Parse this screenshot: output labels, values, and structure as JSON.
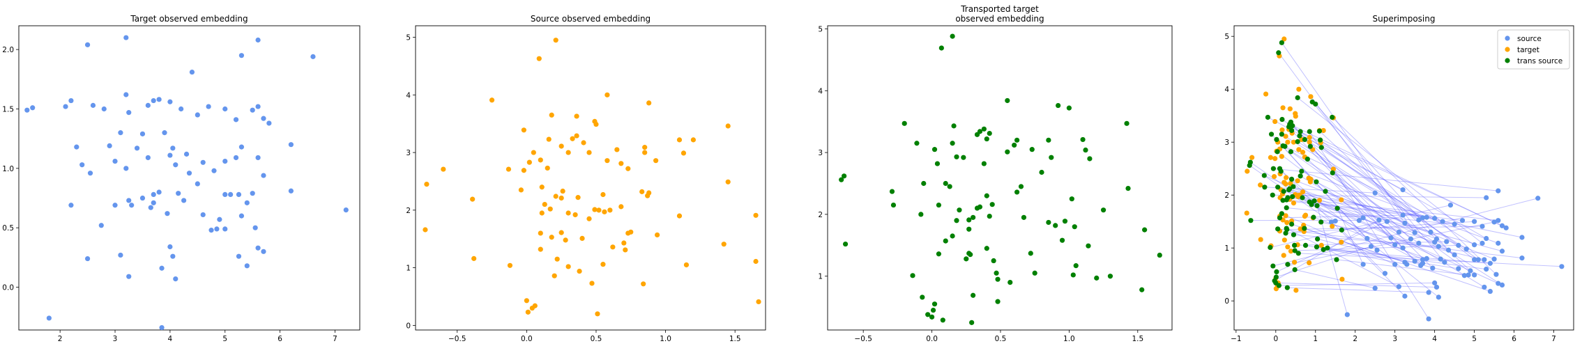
{
  "chart_data": [
    {
      "type": "scatter",
      "title": "Target observed embedding",
      "xlabel": "",
      "ylabel": "",
      "xlim": [
        1.25,
        7.45
      ],
      "ylim": [
        -0.36,
        2.2
      ],
      "xticks": [
        2,
        3,
        4,
        5,
        6,
        7
      ],
      "yticks": [
        0.0,
        0.5,
        1.0,
        1.5,
        2.0
      ],
      "color": "#6495ed",
      "points": [
        [
          1.4,
          1.49
        ],
        [
          1.5,
          1.51
        ],
        [
          2.1,
          1.52
        ],
        [
          2.2,
          1.57
        ],
        [
          2.5,
          2.04
        ],
        [
          3.2,
          2.1
        ],
        [
          4.4,
          1.81
        ],
        [
          5.3,
          1.95
        ],
        [
          5.6,
          2.08
        ],
        [
          6.6,
          1.94
        ],
        [
          2.3,
          1.18
        ],
        [
          2.4,
          1.03
        ],
        [
          2.6,
          1.53
        ],
        [
          2.8,
          1.5
        ],
        [
          2.55,
          0.96
        ],
        [
          2.9,
          1.19
        ],
        [
          3.1,
          1.3
        ],
        [
          3.2,
          1.62
        ],
        [
          3.25,
          1.47
        ],
        [
          3.5,
          1.29
        ],
        [
          3.6,
          1.53
        ],
        [
          3.7,
          1.57
        ],
        [
          3.8,
          1.58
        ],
        [
          4.0,
          1.56
        ],
        [
          4.2,
          1.5
        ],
        [
          4.5,
          1.45
        ],
        [
          4.7,
          1.52
        ],
        [
          5.0,
          1.5
        ],
        [
          5.2,
          1.41
        ],
        [
          5.5,
          1.49
        ],
        [
          5.6,
          1.52
        ],
        [
          5.7,
          1.42
        ],
        [
          5.8,
          1.38
        ],
        [
          3.0,
          1.06
        ],
        [
          3.2,
          1.0
        ],
        [
          3.4,
          1.17
        ],
        [
          3.6,
          1.09
        ],
        [
          3.9,
          1.3
        ],
        [
          4.0,
          1.11
        ],
        [
          4.05,
          1.17
        ],
        [
          4.1,
          1.03
        ],
        [
          4.3,
          1.12
        ],
        [
          4.6,
          1.05
        ],
        [
          4.8,
          0.98
        ],
        [
          5.0,
          1.06
        ],
        [
          5.2,
          1.09
        ],
        [
          5.3,
          1.18
        ],
        [
          5.6,
          1.09
        ],
        [
          5.7,
          0.94
        ],
        [
          3.25,
          0.73
        ],
        [
          3.3,
          0.69
        ],
        [
          3.5,
          0.75
        ],
        [
          3.65,
          0.67
        ],
        [
          3.7,
          0.71
        ],
        [
          3.95,
          0.62
        ],
        [
          3.7,
          0.78
        ],
        [
          3.8,
          0.8
        ],
        [
          4.15,
          0.79
        ],
        [
          4.25,
          0.73
        ],
        [
          4.35,
          0.96
        ],
        [
          4.5,
          0.87
        ],
        [
          4.6,
          0.61
        ],
        [
          4.75,
          0.48
        ],
        [
          4.9,
          0.57
        ],
        [
          5.0,
          0.78
        ],
        [
          5.1,
          0.78
        ],
        [
          5.25,
          0.78
        ],
        [
          5.4,
          0.71
        ],
        [
          5.5,
          0.79
        ],
        [
          5.3,
          0.6
        ],
        [
          5.55,
          0.5
        ],
        [
          5.0,
          0.49
        ],
        [
          4.85,
          0.49
        ],
        [
          2.2,
          0.69
        ],
        [
          2.75,
          0.52
        ],
        [
          3.0,
          0.69
        ],
        [
          3.1,
          0.27
        ],
        [
          4.0,
          0.34
        ],
        [
          4.05,
          0.26
        ],
        [
          3.85,
          0.16
        ],
        [
          3.25,
          0.09
        ],
        [
          4.1,
          0.07
        ],
        [
          2.5,
          0.24
        ],
        [
          5.25,
          0.26
        ],
        [
          5.4,
          0.18
        ],
        [
          5.6,
          0.33
        ],
        [
          5.7,
          0.3
        ],
        [
          6.2,
          0.81
        ],
        [
          6.2,
          1.2
        ],
        [
          7.2,
          0.65
        ],
        [
          1.8,
          -0.26
        ],
        [
          3.85,
          -0.34
        ]
      ]
    },
    {
      "type": "scatter",
      "title": "Source observed embedding",
      "xlabel": "",
      "ylabel": "",
      "xlim": [
        -0.8,
        1.72
      ],
      "ylim": [
        -0.08,
        5.2
      ],
      "xticks": [
        -0.5,
        0.0,
        0.5,
        1.0,
        1.5
      ],
      "yticks": [
        0,
        1,
        2,
        3,
        4,
        5
      ],
      "color": "#ffa500",
      "points": [
        [
          0.21,
          4.95
        ],
        [
          0.09,
          4.63
        ],
        [
          -0.25,
          3.91
        ],
        [
          0.58,
          4.0
        ],
        [
          0.88,
          3.86
        ],
        [
          0.18,
          3.65
        ],
        [
          0.36,
          3.63
        ],
        [
          -0.02,
          3.39
        ],
        [
          0.49,
          3.54
        ],
        [
          0.5,
          3.49
        ],
        [
          0.16,
          3.23
        ],
        [
          0.33,
          3.24
        ],
        [
          0.36,
          3.29
        ],
        [
          1.1,
          3.22
        ],
        [
          1.2,
          3.22
        ],
        [
          1.45,
          3.46
        ],
        [
          0.05,
          3.0
        ],
        [
          0.25,
          3.11
        ],
        [
          0.3,
          3.0
        ],
        [
          0.41,
          3.17
        ],
        [
          0.45,
          3.0
        ],
        [
          0.65,
          3.05
        ],
        [
          0.85,
          3.0
        ],
        [
          0.85,
          3.09
        ],
        [
          1.13,
          2.99
        ],
        [
          0.58,
          2.86
        ],
        [
          0.68,
          2.81
        ],
        [
          0.73,
          2.72
        ],
        [
          0.87,
          2.25
        ],
        [
          0.88,
          2.3
        ],
        [
          0.93,
          2.86
        ],
        [
          -0.6,
          2.71
        ],
        [
          0.02,
          2.83
        ],
        [
          0.1,
          2.87
        ],
        [
          -0.13,
          2.71
        ],
        [
          -0.02,
          2.69
        ],
        [
          0.15,
          2.73
        ],
        [
          -0.72,
          2.45
        ],
        [
          -0.04,
          2.35
        ],
        [
          0.11,
          2.4
        ],
        [
          0.26,
          2.33
        ],
        [
          0.55,
          2.27
        ],
        [
          0.37,
          2.22
        ],
        [
          0.83,
          2.32
        ],
        [
          0.21,
          2.24
        ],
        [
          0.13,
          2.1
        ],
        [
          0.17,
          2.02
        ],
        [
          0.25,
          2.21
        ],
        [
          0.3,
          1.95
        ],
        [
          0.35,
          1.92
        ],
        [
          0.49,
          2.01
        ],
        [
          0.52,
          2.0
        ],
        [
          0.56,
          1.97
        ],
        [
          0.6,
          2.0
        ],
        [
          0.68,
          2.06
        ],
        [
          1.1,
          1.9
        ],
        [
          0.73,
          1.6
        ],
        [
          0.94,
          1.57
        ],
        [
          0.75,
          1.62
        ],
        [
          1.45,
          2.49
        ],
        [
          1.65,
          1.91
        ],
        [
          -0.73,
          1.66
        ],
        [
          -0.39,
          2.19
        ],
        [
          0.11,
          1.95
        ],
        [
          0.1,
          1.6
        ],
        [
          0.18,
          1.53
        ],
        [
          0.1,
          1.32
        ],
        [
          0.25,
          1.61
        ],
        [
          0.28,
          1.48
        ],
        [
          0.4,
          1.51
        ],
        [
          0.45,
          1.85
        ],
        [
          0.62,
          1.36
        ],
        [
          0.71,
          1.31
        ],
        [
          0.7,
          1.43
        ],
        [
          -0.12,
          1.04
        ],
        [
          0.22,
          1.15
        ],
        [
          0.3,
          1.02
        ],
        [
          1.15,
          1.05
        ],
        [
          1.42,
          1.41
        ],
        [
          1.65,
          1.11
        ],
        [
          -0.38,
          1.16
        ],
        [
          0.2,
          0.86
        ],
        [
          0.55,
          1.06
        ],
        [
          0.47,
          0.73
        ],
        [
          0.84,
          0.72
        ],
        [
          0.0,
          0.43
        ],
        [
          0.04,
          0.3
        ],
        [
          0.06,
          0.34
        ],
        [
          0.01,
          0.23
        ],
        [
          0.51,
          0.2
        ],
        [
          1.67,
          0.41
        ],
        [
          0.38,
          0.94
        ]
      ]
    },
    {
      "type": "scatter",
      "title": "Transported target observed embedding",
      "xlabel": "",
      "ylabel": "",
      "xlim": [
        -0.76,
        1.75
      ],
      "ylim": [
        0.13,
        5.05
      ],
      "xticks": [
        -0.5,
        0.0,
        0.5,
        1.0,
        1.5
      ],
      "yticks": [
        1,
        2,
        3,
        4,
        5
      ],
      "color": "#008000",
      "points": [
        [
          -0.66,
          2.56
        ],
        [
          -0.64,
          2.62
        ],
        [
          -0.63,
          1.52
        ],
        [
          -0.29,
          2.37
        ],
        [
          -0.28,
          2.15
        ],
        [
          -0.2,
          3.47
        ],
        [
          -0.14,
          1.01
        ],
        [
          -0.08,
          2.0
        ],
        [
          -0.06,
          2.5
        ],
        [
          -0.07,
          0.66
        ],
        [
          -0.11,
          3.15
        ],
        [
          0.01,
          0.45
        ],
        [
          -0.03,
          0.38
        ],
        [
          0.02,
          0.55
        ],
        [
          0.02,
          3.05
        ],
        [
          0.04,
          2.82
        ],
        [
          0.05,
          2.15
        ],
        [
          0.1,
          1.57
        ],
        [
          0.07,
          4.69
        ],
        [
          0.15,
          4.88
        ],
        [
          0.15,
          3.15
        ],
        [
          0.16,
          3.43
        ],
        [
          0.18,
          1.9
        ],
        [
          0.2,
          2.07
        ],
        [
          0.23,
          2.92
        ],
        [
          0.27,
          1.76
        ],
        [
          0.27,
          1.91
        ],
        [
          0.25,
          1.28
        ],
        [
          0.28,
          1.35
        ],
        [
          0.3,
          0.69
        ],
        [
          0.3,
          1.95
        ],
        [
          0.33,
          3.29
        ],
        [
          0.35,
          3.34
        ],
        [
          0.38,
          3.38
        ],
        [
          0.4,
          3.22
        ],
        [
          0.42,
          3.31
        ],
        [
          0.38,
          2.82
        ],
        [
          0.4,
          2.3
        ],
        [
          0.42,
          1.97
        ],
        [
          0.44,
          2.16
        ],
        [
          0.45,
          1.25
        ],
        [
          0.47,
          1.05
        ],
        [
          0.48,
          0.95
        ],
        [
          0.55,
          3.01
        ],
        [
          0.6,
          3.12
        ],
        [
          0.55,
          3.84
        ],
        [
          0.62,
          3.2
        ],
        [
          0.65,
          2.45
        ],
        [
          0.67,
          1.95
        ],
        [
          0.72,
          1.37
        ],
        [
          0.75,
          1.05
        ],
        [
          0.73,
          3.05
        ],
        [
          0.8,
          2.68
        ],
        [
          0.85,
          1.87
        ],
        [
          0.87,
          2.92
        ],
        [
          0.9,
          1.82
        ],
        [
          0.95,
          1.58
        ],
        [
          0.97,
          1.89
        ],
        [
          0.92,
          3.76
        ],
        [
          1.0,
          3.72
        ],
        [
          1.02,
          2.25
        ],
        [
          1.03,
          1.02
        ],
        [
          1.05,
          1.17
        ],
        [
          1.1,
          3.21
        ],
        [
          1.12,
          3.04
        ],
        [
          1.15,
          2.9
        ],
        [
          1.14,
          1.49
        ],
        [
          1.2,
          0.97
        ],
        [
          1.25,
          2.07
        ],
        [
          1.3,
          1.0
        ],
        [
          1.42,
          3.47
        ],
        [
          1.43,
          2.42
        ],
        [
          1.53,
          0.78
        ],
        [
          1.55,
          1.75
        ],
        [
          1.66,
          1.34
        ],
        [
          0.15,
          1.65
        ],
        [
          0.27,
          1.37
        ],
        [
          0.08,
          0.29
        ],
        [
          0.0,
          0.34
        ],
        [
          0.29,
          0.25
        ],
        [
          0.1,
          2.5
        ],
        [
          0.13,
          2.45
        ],
        [
          0.48,
          0.59
        ],
        [
          0.62,
          2.36
        ],
        [
          0.4,
          1.45
        ],
        [
          0.35,
          2.12
        ],
        [
          0.18,
          2.93
        ],
        [
          0.05,
          1.36
        ],
        [
          0.33,
          2.1
        ],
        [
          0.57,
          0.9
        ],
        [
          1.04,
          1.8
        ],
        [
          0.85,
          3.2
        ]
      ]
    },
    {
      "type": "scatter",
      "title": "Superimposing",
      "xlabel": "",
      "ylabel": "",
      "xlim": [
        -1.05,
        7.5
      ],
      "ylim": [
        -0.55,
        5.2
      ],
      "xticks": [
        -1,
        0,
        1,
        2,
        3,
        4,
        5,
        6,
        7
      ],
      "yticks": [
        0,
        1,
        2,
        3,
        4,
        5
      ],
      "legend_position": "top-right",
      "series": [
        {
          "name": "source",
          "color": "#6495ed"
        },
        {
          "name": "target",
          "color": "#ffa500"
        },
        {
          "name": "trans source",
          "color": "#008000"
        }
      ],
      "source_panel": 0,
      "target_panel": 1,
      "trans_panel": 2,
      "line_color": "#4d4dff"
    }
  ]
}
